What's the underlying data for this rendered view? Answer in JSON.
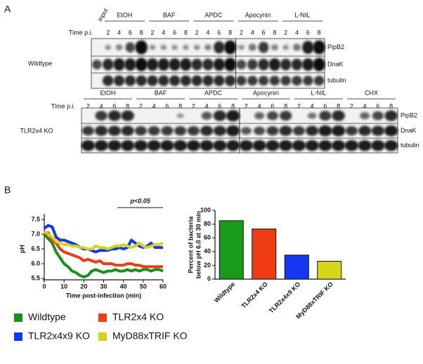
{
  "panel_a": {
    "label": "A",
    "time_label": "Time p.i.",
    "wildtype": {
      "name": "Wildtype",
      "input": "input",
      "groups": [
        {
          "name": "EtOH",
          "times": [
            2,
            4,
            6,
            8
          ]
        },
        {
          "name": "BAF",
          "times": [
            2,
            4,
            6,
            8
          ]
        },
        {
          "name": "APDC",
          "times": [
            2,
            4,
            6,
            8
          ]
        },
        {
          "name": "Apocynin",
          "times": [
            2,
            4,
            6,
            8
          ]
        },
        {
          "name": "L-NIL",
          "times": [
            2,
            4,
            6,
            8
          ]
        }
      ],
      "rows": [
        "PipB2",
        "DnaK",
        "tubulin"
      ]
    },
    "tlr2x4_ko": {
      "name": "TLR2x4 KO",
      "groups": [
        {
          "name": "EtOH",
          "times": [
            2,
            4,
            6,
            8
          ]
        },
        {
          "name": "BAF",
          "times": [
            2,
            4,
            6,
            8
          ]
        },
        {
          "name": "APDC",
          "times": [
            2,
            4,
            6,
            8
          ]
        },
        {
          "name": "Apocynin",
          "times": [
            2,
            4,
            6,
            8
          ]
        },
        {
          "name": "L-NIL",
          "times": [
            2,
            4,
            6,
            8
          ]
        },
        {
          "name": "CHX",
          "times": [
            2,
            4,
            6,
            8
          ]
        }
      ],
      "rows": [
        "PipB2",
        "DnaK",
        "tubulin"
      ]
    }
  },
  "panel_b": {
    "label": "B"
  },
  "chart_data": [
    {
      "type": "line",
      "xlabel": "Time post-infection (min)",
      "ylabel": "pH",
      "annotation": "p<0.05",
      "x": [
        0,
        2,
        4,
        6,
        8,
        10,
        12,
        14,
        16,
        18,
        20,
        22,
        24,
        26,
        28,
        30,
        32,
        34,
        36,
        38,
        40,
        42,
        44,
        46,
        48,
        50,
        52,
        54,
        56,
        58,
        60
      ],
      "xlim": [
        0,
        60
      ],
      "xticks": [
        0,
        10,
        20,
        30,
        40,
        50,
        60
      ],
      "ylim": [
        5.5,
        7.5
      ],
      "yticks": [
        5.5,
        {
          "value": 6,
          "label": "6.0"
        },
        6.5,
        {
          "value": 7,
          "label": "7.0"
        },
        7.5
      ],
      "series": [
        {
          "name": "Wildtype",
          "color": "#1a8f1a",
          "values": [
            7.0,
            6.85,
            6.7,
            6.4,
            6.2,
            6.0,
            5.9,
            5.75,
            5.7,
            5.6,
            5.55,
            5.6,
            5.75,
            5.8,
            5.75,
            5.7,
            5.75,
            5.75,
            5.8,
            5.75,
            5.75,
            5.8,
            5.75,
            5.8,
            5.75,
            5.8,
            5.8,
            5.75,
            5.8,
            5.8,
            5.75
          ]
        },
        {
          "name": "TLR2x4 KO",
          "color": "#f03c14",
          "values": [
            7.0,
            7.05,
            6.8,
            6.7,
            6.5,
            6.4,
            6.35,
            6.3,
            6.25,
            6.2,
            6.1,
            6.15,
            6.1,
            6.05,
            6.1,
            6.0,
            6.0,
            6.0,
            5.95,
            5.95,
            5.95,
            6.0,
            6.0,
            5.95,
            5.95,
            5.9,
            5.9,
            5.9,
            5.9,
            5.9,
            5.9
          ]
        },
        {
          "name": "TLR2x4x9 KO",
          "color": "#1437f0",
          "values": [
            7.2,
            7.3,
            7.25,
            6.9,
            6.8,
            6.8,
            6.75,
            6.7,
            6.65,
            6.55,
            6.5,
            6.5,
            6.45,
            6.4,
            6.45,
            6.45,
            6.45,
            6.5,
            6.5,
            6.55,
            6.5,
            6.55,
            6.8,
            6.7,
            6.6,
            6.55,
            6.6,
            6.7,
            6.55,
            6.55,
            6.55
          ]
        },
        {
          "name": "MyD88xTRIF KO",
          "color": "#d4d41c",
          "values": [
            7.1,
            7.0,
            6.9,
            6.75,
            6.7,
            6.65,
            6.65,
            6.6,
            6.6,
            6.55,
            6.55,
            6.5,
            6.5,
            6.6,
            6.55,
            6.55,
            6.5,
            6.55,
            6.6,
            6.6,
            6.65,
            6.6,
            6.55,
            6.6,
            6.7,
            6.6,
            6.55,
            6.6,
            6.65,
            6.65,
            6.7
          ]
        }
      ]
    },
    {
      "type": "bar",
      "ylabel": [
        "Percent of bacteria",
        "below pH 6.0 at 30 min"
      ],
      "categories": [
        "Wildtype",
        "TLR2x4 KO",
        "TLR2x4x9 KO",
        "MyD88xTRIF KO"
      ],
      "values": [
        85,
        73,
        35,
        26
      ],
      "colors": [
        "#1a9a1a",
        "#f03c14",
        "#1437f0",
        "#d6d61c"
      ],
      "ylim": [
        0,
        100
      ],
      "yticks": [
        0,
        20,
        40,
        60,
        80,
        100
      ]
    }
  ]
}
